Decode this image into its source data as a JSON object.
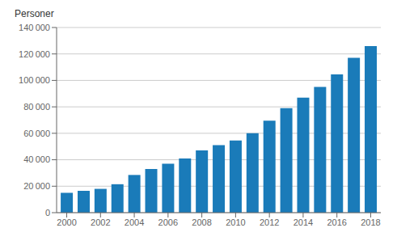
{
  "chart_data": {
    "type": "bar",
    "ylabel": "Personer",
    "x": [
      2000,
      2001,
      2002,
      2003,
      2004,
      2005,
      2006,
      2007,
      2008,
      2009,
      2010,
      2011,
      2012,
      2013,
      2014,
      2015,
      2016,
      2017,
      2018
    ],
    "values": [
      15000,
      16500,
      18000,
      21500,
      28500,
      33000,
      37000,
      41000,
      47000,
      51000,
      54500,
      60000,
      69500,
      79000,
      87000,
      95000,
      104500,
      117000,
      126000
    ],
    "color": "#1a7bb9",
    "xlim": [
      1999.4,
      2018.6
    ],
    "xticks": [
      2000,
      2002,
      2004,
      2006,
      2008,
      2010,
      2012,
      2014,
      2016,
      2018
    ],
    "ylim": [
      0,
      140000
    ],
    "yticks": [
      0,
      {
        "value": 20000,
        "label": "20 000"
      },
      {
        "value": 40000,
        "label": "40 000"
      },
      {
        "value": 60000,
        "label": "60 000"
      },
      {
        "value": 80000,
        "label": "80 000"
      },
      {
        "value": 100000,
        "label": "100 000"
      },
      {
        "value": 120000,
        "label": "120 000"
      },
      {
        "value": 140000,
        "label": "140 000"
      }
    ],
    "grid": true
  }
}
